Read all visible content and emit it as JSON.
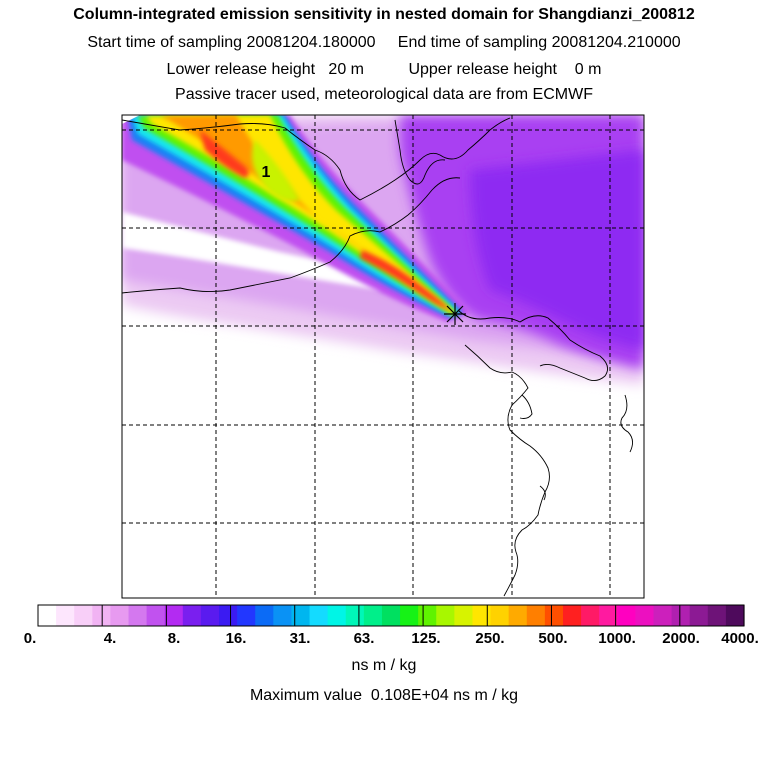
{
  "header": {
    "title": "Column-integrated emission sensitivity in nested domain for Shangdianzi_200812",
    "sampling": "Start time of sampling 20081204.180000     End time of sampling 20081204.210000",
    "release": "Lower release height   20 m          Upper release height    0 m",
    "tracer": "Passive tracer used, meteorological data are from ECMWF"
  },
  "map": {
    "contour_label": "1",
    "marker_icon": "receptor-star-icon"
  },
  "colorbar": {
    "colors": [
      "#ffffff",
      "#fde6fd",
      "#f8cff8",
      "#f1b3f3",
      "#e79af0",
      "#d478ef",
      "#c152ef",
      "#b32bf2",
      "#7a1fef",
      "#5a1bef",
      "#3b1bf2",
      "#2237ff",
      "#0b6bf6",
      "#0a92f5",
      "#00b6ef",
      "#14dbff",
      "#00f5e6",
      "#00f7b8",
      "#00ef8a",
      "#00e060",
      "#16f216",
      "#5ff300",
      "#a8f700",
      "#d7f300",
      "#ffe600",
      "#ffd200",
      "#ffaa00",
      "#ff7f00",
      "#ff4f00",
      "#ff2020",
      "#ff1a66",
      "#ff1aa0",
      "#ff00c0",
      "#ec10c0",
      "#cc20bc",
      "#b020b0",
      "#8c1a94",
      "#6e1378",
      "#4e0a5c"
    ],
    "tick_labels": [
      "0.",
      "4.",
      "8.",
      "16.",
      "31.",
      "63.",
      "125.",
      "250.",
      "500.",
      "1000.",
      "2000.",
      "4000."
    ],
    "units": "ns m / kg",
    "max_value": "Maximum value  0.108E+04 ns m / kg"
  }
}
